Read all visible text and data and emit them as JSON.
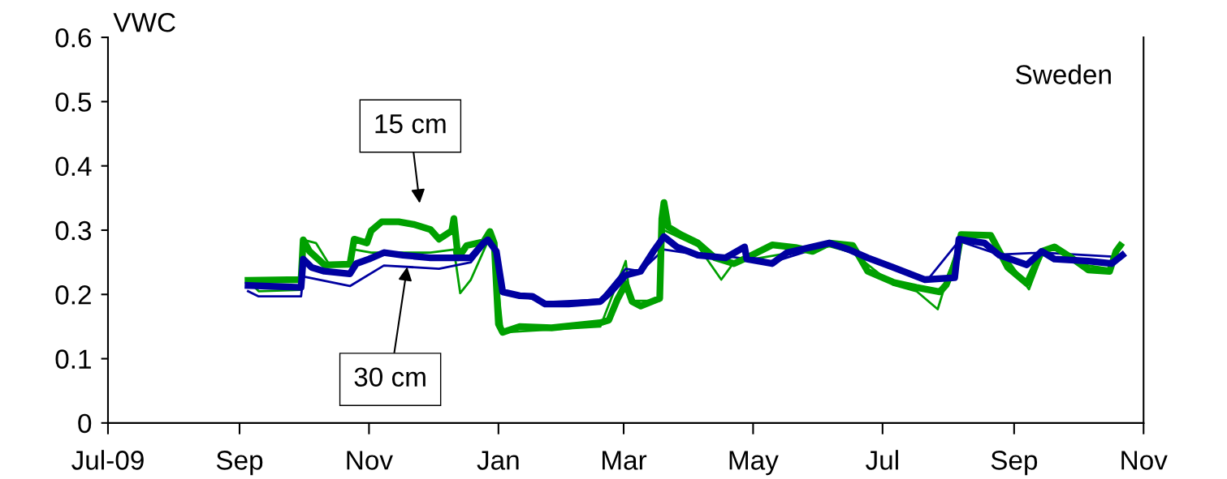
{
  "chart_data": {
    "type": "line",
    "ylabel": "VWC",
    "annotations": [
      "Sweden",
      "15 cm",
      {
        "text": "30 cm",
        "x": "2009-11-19",
        "y": 0.243
      }
    ],
    "xlim": [
      "2009-07-01",
      "2010-11-01"
    ],
    "xticks": [
      {
        "value": "2009-07-01",
        "label": "Jul-09"
      },
      {
        "value": "2009-09-01",
        "label": "Sep"
      },
      {
        "value": "2009-11-01",
        "label": "Nov"
      },
      {
        "value": "2010-01-01",
        "label": "Jan"
      },
      {
        "value": "2010-03-01",
        "label": "Mar"
      },
      {
        "value": "2010-05-01",
        "label": "May"
      },
      {
        "value": "2010-07-01",
        "label": "Jul"
      },
      {
        "value": "2010-09-01",
        "label": "Sep"
      },
      {
        "value": "2010-11-01",
        "label": "Nov"
      }
    ],
    "ylim": [
      0,
      0.6
    ],
    "yticks": [
      0,
      0.1,
      0.2,
      0.3,
      0.4,
      0.5,
      0.6
    ],
    "grid": false,
    "marker": "none",
    "line_style": "solid",
    "series": [
      {
        "color": "#00a000",
        "x": [
          "2009-09-05",
          "2009-09-10",
          "2009-09-30",
          "2009-10-01",
          "2009-10-07",
          "2009-10-13",
          "2009-10-23",
          "2009-10-25",
          "2009-11-02",
          "2009-11-30",
          "2009-12-11",
          "2009-12-14",
          "2009-12-19",
          "2009-12-28",
          "2009-12-30",
          "2010-01-03",
          "2010-02-18",
          "2010-03-02",
          "2010-03-04",
          "2010-03-18",
          "2010-03-20",
          "2010-04-05",
          "2010-04-16",
          "2010-04-22",
          "2010-06-06",
          "2010-06-17",
          "2010-07-06",
          "2010-07-17",
          "2010-07-27",
          "2010-07-31",
          "2010-08-07",
          "2010-08-21",
          "2010-09-08",
          "2010-09-14",
          "2010-09-20",
          "2010-10-06",
          "2010-10-16",
          "2010-10-21"
        ],
        "values": [
          0.222,
          0.205,
          0.207,
          0.285,
          0.28,
          0.248,
          0.25,
          0.27,
          0.265,
          0.265,
          0.27,
          0.202,
          0.223,
          0.29,
          0.27,
          0.141,
          0.15,
          0.252,
          0.19,
          0.19,
          0.3,
          0.275,
          0.223,
          0.25,
          0.275,
          0.265,
          0.215,
          0.205,
          0.177,
          0.22,
          0.29,
          0.29,
          0.208,
          0.26,
          0.275,
          0.245,
          0.24,
          0.28
        ]
      },
      {
        "color": "#0000a0",
        "x": [
          "2009-09-05",
          "2009-09-10",
          "2009-09-30",
          "2009-10-01",
          "2009-10-23",
          "2009-11-08",
          "2009-12-04",
          "2009-12-19",
          "2009-12-25",
          "2009-12-27",
          "2009-12-31",
          "2010-01-03",
          "2010-01-23",
          "2010-02-18",
          "2010-03-02",
          "2010-03-09",
          "2010-03-20",
          "2010-04-05",
          "2010-04-22",
          "2010-05-10",
          "2010-06-06",
          "2010-06-24",
          "2010-07-22",
          "2010-08-06",
          "2010-08-25",
          "2010-09-14",
          "2010-10-22"
        ],
        "values": [
          0.205,
          0.197,
          0.197,
          0.228,
          0.213,
          0.245,
          0.24,
          0.25,
          0.275,
          0.285,
          0.265,
          0.205,
          0.188,
          0.192,
          0.24,
          0.236,
          0.27,
          0.262,
          0.258,
          0.25,
          0.278,
          0.255,
          0.222,
          0.283,
          0.262,
          0.265,
          0.258
        ]
      },
      {
        "color": "#00a000",
        "x": [
          "2009-09-05",
          "2009-09-30",
          "2009-10-01",
          "2009-10-04",
          "2009-10-11",
          "2009-10-23",
          "2009-10-25",
          "2009-10-31",
          "2009-11-02",
          "2009-11-07",
          "2009-11-15",
          "2009-11-22",
          "2009-11-30",
          "2009-12-04",
          "2009-12-10",
          "2009-12-11",
          "2009-12-13",
          "2009-12-17",
          "2009-12-25",
          "2009-12-28",
          "2009-12-30",
          "2010-01-01",
          "2010-01-03",
          "2010-01-11",
          "2010-01-26",
          "2010-02-18",
          "2010-02-22",
          "2010-02-26",
          "2010-03-02",
          "2010-03-05",
          "2010-03-09",
          "2010-03-18",
          "2010-03-19",
          "2010-03-20",
          "2010-03-22",
          "2010-03-28",
          "2010-04-05",
          "2010-04-13",
          "2010-04-22",
          "2010-04-28",
          "2010-05-10",
          "2010-05-21",
          "2010-05-29",
          "2010-06-06",
          "2010-06-17",
          "2010-06-24",
          "2010-07-06",
          "2010-07-17",
          "2010-07-28",
          "2010-07-31",
          "2010-08-05",
          "2010-08-07",
          "2010-08-21",
          "2010-08-29",
          "2010-09-07",
          "2010-09-14",
          "2010-09-20",
          "2010-09-28",
          "2010-10-06",
          "2010-10-16",
          "2010-10-19",
          "2010-10-21"
        ],
        "values": [
          0.222,
          0.223,
          0.285,
          0.267,
          0.246,
          0.247,
          0.286,
          0.28,
          0.299,
          0.313,
          0.313,
          0.309,
          0.301,
          0.286,
          0.299,
          0.318,
          0.257,
          0.276,
          0.282,
          0.298,
          0.28,
          0.154,
          0.141,
          0.15,
          0.148,
          0.156,
          0.16,
          0.192,
          0.217,
          0.189,
          0.182,
          0.194,
          0.318,
          0.343,
          0.305,
          0.293,
          0.28,
          0.257,
          0.248,
          0.257,
          0.277,
          0.273,
          0.267,
          0.28,
          0.276,
          0.236,
          0.219,
          0.211,
          0.204,
          0.215,
          0.255,
          0.293,
          0.292,
          0.242,
          0.217,
          0.267,
          0.274,
          0.257,
          0.238,
          0.236,
          0.267,
          0.276
        ]
      },
      {
        "color": "#0000a0",
        "x": [
          "2009-09-05",
          "2009-09-30",
          "2009-10-01",
          "2009-10-05",
          "2009-10-11",
          "2009-10-23",
          "2009-10-26",
          "2009-11-01",
          "2009-11-08",
          "2009-11-17",
          "2009-11-30",
          "2009-12-10",
          "2009-12-19",
          "2009-12-25",
          "2009-12-27",
          "2009-12-31",
          "2010-01-03",
          "2010-01-11",
          "2010-01-17",
          "2010-01-23",
          "2010-02-03",
          "2010-02-18",
          "2010-02-23",
          "2010-03-02",
          "2010-03-09",
          "2010-03-15",
          "2010-03-20",
          "2010-03-26",
          "2010-04-05",
          "2010-04-18",
          "2010-04-27",
          "2010-04-28",
          "2010-05-10",
          "2010-05-17",
          "2010-06-06",
          "2010-06-15",
          "2010-06-24",
          "2010-07-06",
          "2010-07-21",
          "2010-08-04",
          "2010-08-06",
          "2010-08-18",
          "2010-08-25",
          "2010-09-07",
          "2010-09-14",
          "2010-09-20",
          "2010-10-06",
          "2010-10-17",
          "2010-10-22"
        ],
        "values": [
          0.214,
          0.211,
          0.255,
          0.242,
          0.236,
          0.232,
          0.248,
          0.255,
          0.265,
          0.261,
          0.257,
          0.257,
          0.257,
          0.28,
          0.285,
          0.267,
          0.204,
          0.198,
          0.197,
          0.185,
          0.185,
          0.189,
          0.204,
          0.23,
          0.236,
          0.267,
          0.29,
          0.274,
          0.261,
          0.257,
          0.274,
          0.255,
          0.248,
          0.265,
          0.28,
          0.27,
          0.257,
          0.242,
          0.223,
          0.226,
          0.286,
          0.28,
          0.261,
          0.246,
          0.267,
          0.255,
          0.252,
          0.248,
          0.261
        ]
      }
    ]
  }
}
